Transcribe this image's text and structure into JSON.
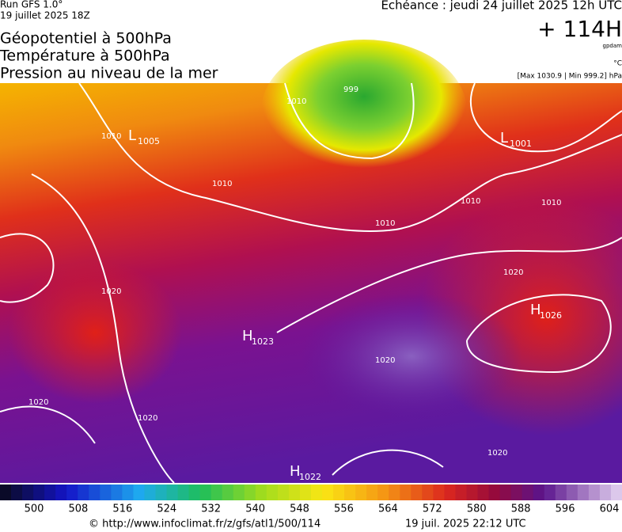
{
  "header": {
    "run": "Run GFS 1.0°",
    "date": "19 juillet 2025 18Z",
    "titles": [
      "Géopotentiel à 500hPa",
      "Température à 500hPa",
      "Pression au niveau de la mer"
    ],
    "echeance": "Echéance : jeudi 24 juillet 2025 12h UTC",
    "forecast": "+ 114H",
    "unit": "gpdam",
    "temp_unit": "°C",
    "range": "[Max 1030.9 | Min 999.2] hPa"
  },
  "map": {
    "centers": [
      {
        "letter": "L",
        "value": "1005"
      },
      {
        "letter": "L",
        "value": "1001"
      },
      {
        "letter": "H",
        "value": "1023"
      },
      {
        "letter": "H",
        "value": "1026"
      },
      {
        "letter": "H",
        "value": "1022"
      }
    ],
    "isobar_labels": [
      "999",
      "1010",
      "1010",
      "1010",
      "1010",
      "1010",
      "1010",
      "1020",
      "1020",
      "1020",
      "1020",
      "1020",
      "1020"
    ]
  },
  "colorbar": {
    "labels": [
      500,
      508,
      516,
      524,
      532,
      540,
      548,
      556,
      564,
      572,
      580,
      588,
      596,
      604
    ]
  },
  "footer": {
    "source": "© http://www.infoclimat.fr/z/gfs/atl1/500/114",
    "timestamp": "19 juil. 2025 22:12 UTC"
  }
}
